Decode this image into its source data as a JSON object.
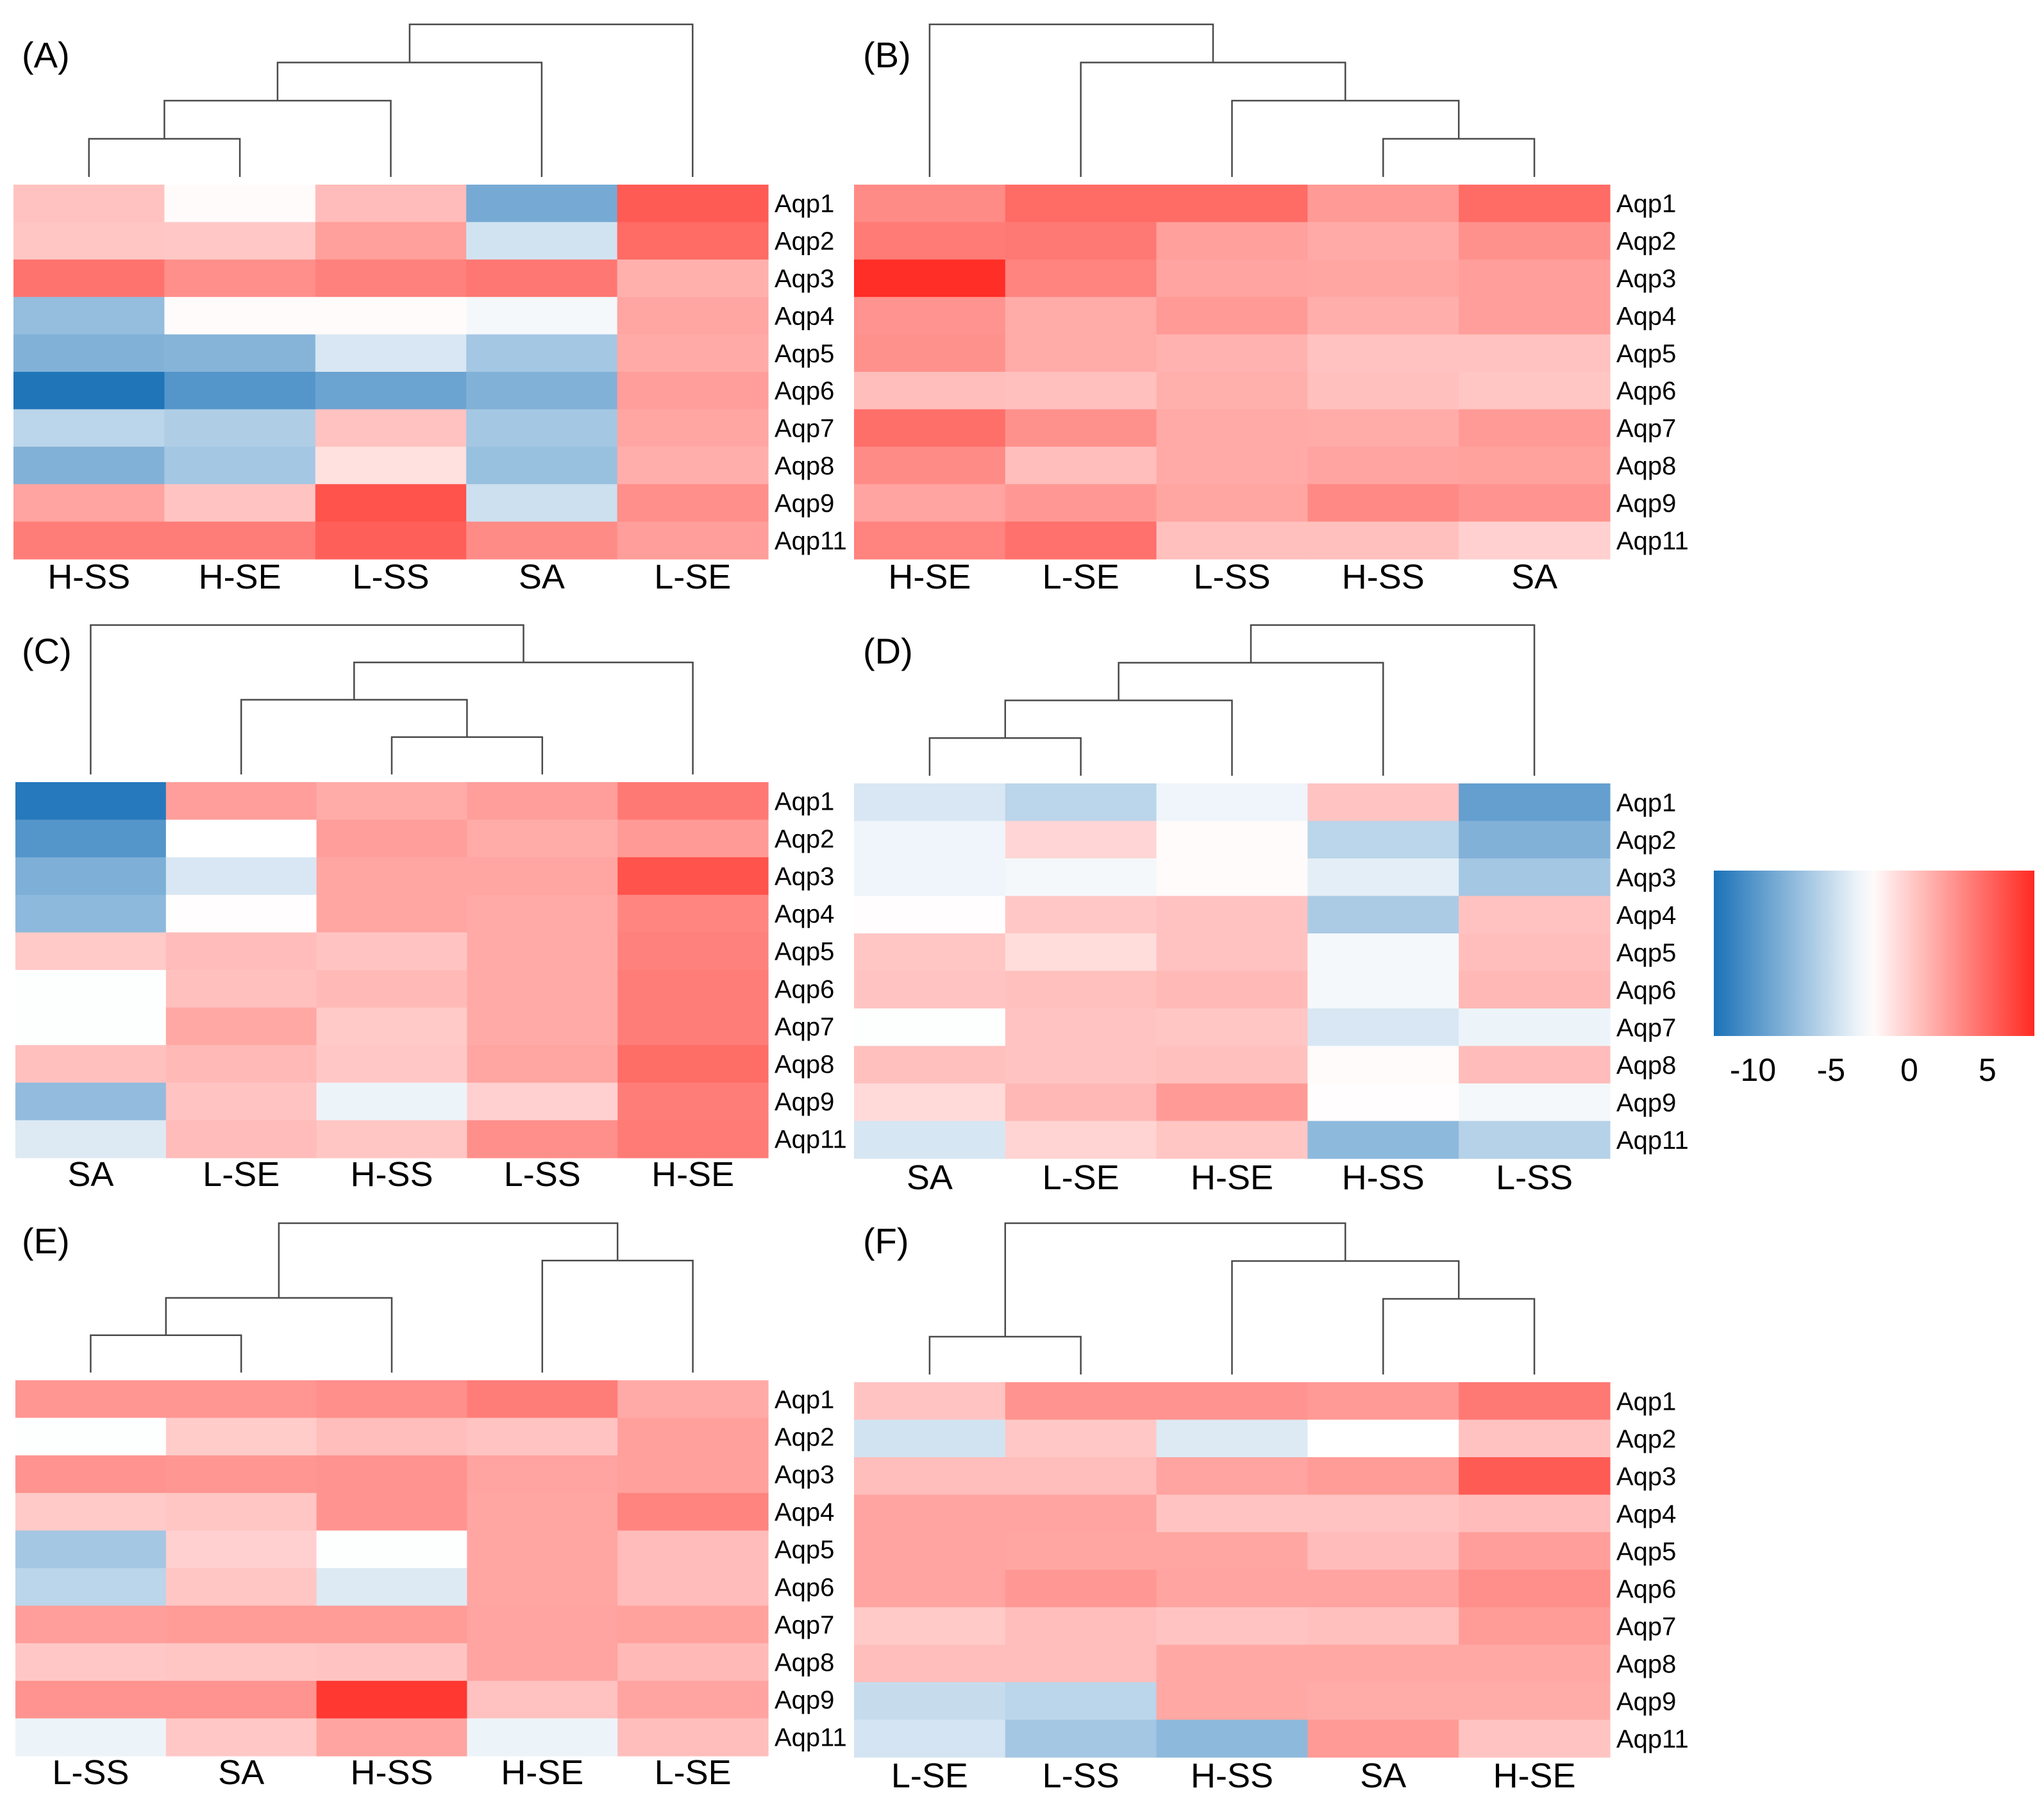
{
  "chart_data": [
    {
      "type": "heatmap",
      "panel": "(A)",
      "columns": [
        "H-SS",
        "H-SE",
        "L-SS",
        "SA",
        "L-SE"
      ],
      "rows": [
        "Aqp1",
        "Aqp2",
        "Aqp3",
        "Aqp4",
        "Aqp5",
        "Aqp6",
        "Aqp7",
        "Aqp8",
        "Aqp9",
        "Aqp11"
      ],
      "values": [
        [
          0.5,
          -2.3,
          0.8,
          -8.5,
          5.6
        ],
        [
          0.3,
          0.2,
          2.2,
          -4.5,
          4.8
        ],
        [
          4.4,
          3.0,
          3.7,
          4.2,
          1.4
        ],
        [
          -7.2,
          -2.3,
          -2.3,
          -3.0,
          1.9
        ],
        [
          -8.0,
          -7.8,
          -4.2,
          -6.5,
          1.7
        ],
        [
          -12.3,
          -10.0,
          -9.0,
          -8.0,
          2.3
        ],
        [
          -5.5,
          -6.0,
          0.5,
          -6.5,
          1.9
        ],
        [
          -8.0,
          -6.5,
          -1.0,
          -7.0,
          1.5
        ],
        [
          2.0,
          0.4,
          6.0,
          -4.7,
          3.0
        ],
        [
          3.9,
          3.9,
          5.4,
          3.2,
          2.3
        ]
      ],
      "dendrogram": {
        "merges": [
          [
            0,
            1
          ],
          [
            5,
            2
          ],
          [
            6,
            3
          ],
          [
            7,
            4
          ]
        ]
      }
    },
    {
      "type": "heatmap",
      "panel": "(B)",
      "columns": [
        "H-SE",
        "L-SE",
        "L-SS",
        "H-SS",
        "SA"
      ],
      "rows": [
        "Aqp1",
        "Aqp2",
        "Aqp3",
        "Aqp4",
        "Aqp5",
        "Aqp6",
        "Aqp7",
        "Aqp8",
        "Aqp9",
        "Aqp11"
      ],
      "values": [
        [
          3.2,
          4.8,
          4.8,
          2.5,
          4.8
        ],
        [
          4.0,
          4.1,
          2.2,
          1.7,
          2.9
        ],
        [
          7.8,
          3.6,
          2.0,
          1.9,
          2.3
        ],
        [
          2.8,
          1.6,
          2.5,
          1.5,
          2.3
        ],
        [
          2.9,
          1.6,
          1.3,
          0.5,
          0.5
        ],
        [
          0.7,
          0.6,
          1.4,
          0.6,
          0.3
        ],
        [
          4.6,
          2.9,
          1.7,
          1.6,
          2.5
        ],
        [
          3.2,
          0.7,
          1.7,
          2.0,
          2.1
        ],
        [
          2.0,
          2.6,
          1.9,
          3.3,
          2.8
        ],
        [
          3.6,
          4.5,
          0.6,
          0.6,
          -0.2
        ]
      ],
      "dendrogram": {
        "merges": [
          [
            3,
            4
          ],
          [
            2,
            5
          ],
          [
            1,
            6
          ],
          [
            0,
            7
          ]
        ]
      }
    },
    {
      "type": "heatmap",
      "panel": "(C)",
      "columns": [
        "SA",
        "L-SE",
        "H-SS",
        "L-SS",
        "H-SE"
      ],
      "rows": [
        "Aqp1",
        "Aqp2",
        "Aqp3",
        "Aqp4",
        "Aqp5",
        "Aqp6",
        "Aqp7",
        "Aqp8",
        "Aqp9",
        "Aqp11"
      ],
      "values": [
        [
          -12.0,
          2.3,
          1.6,
          2.3,
          4.1
        ],
        [
          -10.0,
          -2.5,
          2.3,
          1.6,
          2.5
        ],
        [
          -8.2,
          -4.2,
          1.9,
          1.9,
          6.0
        ],
        [
          -7.5,
          -2.4,
          1.9,
          1.7,
          3.5
        ],
        [
          0.1,
          0.8,
          0.4,
          1.7,
          3.7
        ],
        [
          -2.6,
          0.6,
          0.9,
          1.7,
          3.9
        ],
        [
          -2.6,
          1.8,
          0.1,
          1.7,
          3.9
        ],
        [
          0.6,
          0.9,
          0.2,
          1.9,
          4.7
        ],
        [
          -7.3,
          0.4,
          -3.3,
          -0.2,
          3.9
        ],
        [
          -4.0,
          0.8,
          0.3,
          3.0,
          4.0
        ]
      ],
      "dendrogram": {
        "merges": [
          [
            2,
            3
          ],
          [
            1,
            5
          ],
          [
            6,
            4
          ],
          [
            0,
            7
          ]
        ]
      }
    },
    {
      "type": "heatmap",
      "panel": "(D)",
      "columns": [
        "SA",
        "L-SE",
        "H-SE",
        "H-SS",
        "L-SS"
      ],
      "rows": [
        "Aqp1",
        "Aqp2",
        "Aqp3",
        "Aqp4",
        "Aqp5",
        "Aqp6",
        "Aqp7",
        "Aqp8",
        "Aqp9",
        "Aqp11"
      ],
      "values": [
        [
          -4.2,
          -5.5,
          -3.2,
          0.4,
          -9.3
        ],
        [
          -3.2,
          -0.5,
          -2.3,
          -5.5,
          -8.0
        ],
        [
          -3.2,
          -3.0,
          -2.3,
          -3.7,
          -6.5
        ],
        [
          -2.4,
          0.2,
          0.5,
          -6.2,
          0.5
        ],
        [
          0.3,
          -0.8,
          0.5,
          -3.0,
          0.7
        ],
        [
          0.4,
          0.6,
          0.9,
          -3.0,
          1.0
        ],
        [
          -2.6,
          0.4,
          0.3,
          -4.2,
          -3.3
        ],
        [
          0.6,
          0.4,
          0.6,
          -2.3,
          0.8
        ],
        [
          -0.7,
          1.0,
          2.5,
          -2.4,
          -3.0
        ],
        [
          -4.3,
          -0.4,
          0.3,
          -7.5,
          -5.7
        ]
      ],
      "dendrogram": {
        "merges": [
          [
            0,
            1
          ],
          [
            5,
            2
          ],
          [
            6,
            3
          ],
          [
            7,
            4
          ]
        ]
      }
    },
    {
      "type": "heatmap",
      "panel": "(E)",
      "columns": [
        "L-SS",
        "SA",
        "H-SS",
        "H-SE",
        "L-SE"
      ],
      "rows": [
        "Aqp1",
        "Aqp2",
        "Aqp3",
        "Aqp4",
        "Aqp5",
        "Aqp6",
        "Aqp7",
        "Aqp8",
        "Aqp9",
        "Aqp11"
      ],
      "values": [
        [
          2.7,
          2.7,
          3.0,
          3.9,
          1.7
        ],
        [
          -2.6,
          0.0,
          0.7,
          0.4,
          2.2
        ],
        [
          2.8,
          2.7,
          2.8,
          2.0,
          2.2
        ],
        [
          0.1,
          0.3,
          2.8,
          1.9,
          3.6
        ],
        [
          -6.5,
          -0.2,
          -2.6,
          1.9,
          0.8
        ],
        [
          -5.5,
          0.3,
          -4.0,
          1.9,
          0.8
        ],
        [
          2.3,
          2.4,
          2.4,
          2.0,
          2.1
        ],
        [
          0.2,
          0.3,
          0.4,
          2.0,
          0.9
        ],
        [
          2.8,
          2.8,
          7.3,
          0.5,
          2.0
        ],
        [
          -3.3,
          0.2,
          2.0,
          -3.3,
          0.7
        ]
      ],
      "dendrogram": {
        "merges": [
          [
            0,
            1
          ],
          [
            5,
            2
          ],
          [
            3,
            4
          ],
          [
            6,
            7
          ]
        ]
      }
    },
    {
      "type": "heatmap",
      "panel": "(F)",
      "columns": [
        "L-SE",
        "L-SS",
        "H-SS",
        "SA",
        "H-SE"
      ],
      "rows": [
        "Aqp1",
        "Aqp2",
        "Aqp3",
        "Aqp4",
        "Aqp5",
        "Aqp6",
        "Aqp7",
        "Aqp8",
        "Aqp9",
        "Aqp11"
      ],
      "values": [
        [
          0.4,
          2.8,
          2.8,
          2.5,
          4.1
        ],
        [
          -4.5,
          0.2,
          -4.0,
          -2.5,
          0.5
        ],
        [
          0.7,
          0.7,
          2.0,
          2.4,
          5.6
        ],
        [
          2.0,
          2.0,
          0.4,
          0.4,
          0.8
        ],
        [
          2.0,
          1.9,
          1.9,
          0.8,
          2.3
        ],
        [
          2.0,
          2.6,
          2.0,
          2.0,
          3.0
        ],
        [
          0.1,
          0.7,
          0.4,
          0.6,
          2.4
        ],
        [
          0.7,
          0.7,
          1.8,
          1.8,
          1.8
        ],
        [
          -5.0,
          -5.5,
          1.8,
          1.6,
          1.6
        ],
        [
          -4.4,
          -6.5,
          -7.5,
          2.5,
          0.4
        ]
      ],
      "dendrogram": {
        "merges": [
          [
            0,
            1
          ],
          [
            3,
            4
          ],
          [
            2,
            6
          ],
          [
            5,
            7
          ]
        ]
      }
    }
  ],
  "legend": {
    "ticks": [
      -10,
      -5,
      0,
      5
    ],
    "tick_labels": [
      "-10",
      "-5",
      "0",
      "5"
    ],
    "range": [
      -12.5,
      8
    ],
    "colors": {
      "low": "#1b72b8",
      "mid": "#ffffff",
      "high": "#ff2a22"
    }
  }
}
